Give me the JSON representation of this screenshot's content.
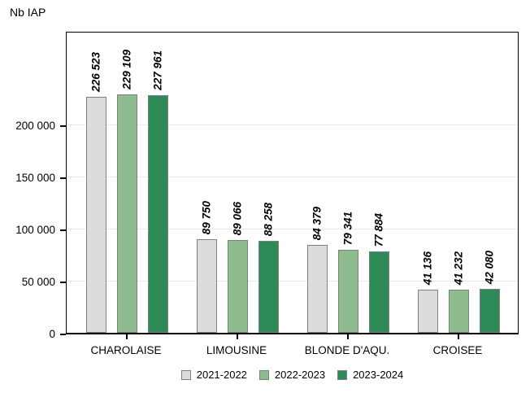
{
  "axis_title": "Nb IAP",
  "chart_data": {
    "type": "bar",
    "title": "Nb IAP",
    "ylabel": "Nb IAP",
    "xlabel": "",
    "categories": [
      "CHAROLAISE",
      "LIMOUSINE",
      "BLONDE D'AQU.",
      "CROISEE"
    ],
    "series": [
      {
        "name": "2021-2022",
        "color": "#dcdcdc",
        "values": [
          226523,
          89750,
          84379,
          41136
        ]
      },
      {
        "name": "2022-2023",
        "color": "#8fbc8f",
        "values": [
          229109,
          89066,
          79341,
          41232
        ]
      },
      {
        "name": "2023-2024",
        "color": "#2e8b57",
        "values": [
          227961,
          88258,
          77884,
          42080
        ]
      }
    ],
    "yticks": [
      0,
      50000,
      100000,
      150000,
      200000
    ],
    "ylim": [
      0,
      290625
    ],
    "grid": true,
    "legend_position": "bottom",
    "value_labels": "rotated 90, italic bold, thousands separated by space",
    "colors": {
      "bar_border": "#7f7f7f",
      "gridline": "#e8e8e8",
      "axis": "#000000",
      "text": "#000000"
    }
  }
}
